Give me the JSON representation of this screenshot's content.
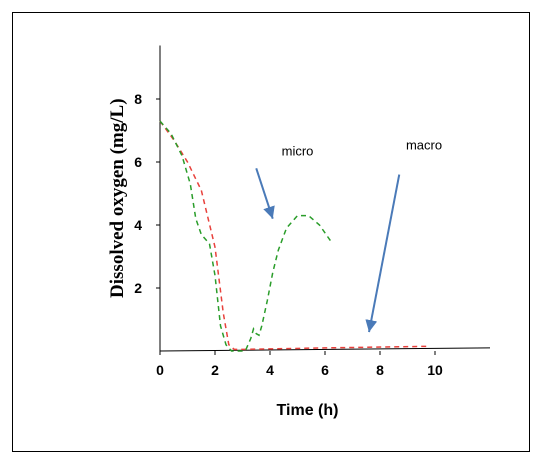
{
  "chart_data": {
    "type": "line",
    "xlabel": "Time  (h)",
    "ylabel": "Dissolved oxygen  (mg/L)",
    "xlim": [
      0,
      12
    ],
    "ylim": [
      0,
      10
    ],
    "x_ticks": [
      0,
      2,
      4,
      6,
      8,
      10
    ],
    "y_ticks": [
      2,
      4,
      6,
      8
    ],
    "grid": false,
    "series": [
      {
        "color": "#e8413c",
        "dash": "dashed",
        "points": [
          [
            0,
            7.3
          ],
          [
            0.5,
            6.7
          ],
          [
            1.0,
            6.0
          ],
          [
            1.5,
            5.1
          ],
          [
            2.0,
            3.3
          ],
          [
            2.3,
            1.2
          ],
          [
            2.5,
            0.2
          ],
          [
            2.7,
            0.05
          ],
          [
            3.0,
            0.05
          ],
          [
            6.0,
            0.1
          ],
          [
            9.8,
            0.15
          ]
        ]
      },
      {
        "color": "#2a9d2a",
        "dash": "dashed",
        "points": [
          [
            0,
            7.3
          ],
          [
            0.4,
            6.9
          ],
          [
            0.8,
            6.2
          ],
          [
            1.1,
            5.3
          ],
          [
            1.3,
            4.2
          ],
          [
            1.5,
            3.7
          ],
          [
            1.8,
            3.4
          ],
          [
            2.0,
            2.4
          ],
          [
            2.2,
            0.8
          ],
          [
            2.4,
            0.2
          ],
          [
            2.6,
            0.0
          ],
          [
            3.1,
            0.0
          ],
          [
            3.3,
            0.4
          ],
          [
            3.4,
            0.7
          ],
          [
            3.5,
            0.55
          ],
          [
            3.6,
            0.5
          ],
          [
            3.7,
            0.8
          ],
          [
            3.9,
            1.6
          ],
          [
            4.1,
            2.5
          ],
          [
            4.3,
            3.2
          ],
          [
            4.6,
            3.9
          ],
          [
            5.0,
            4.3
          ],
          [
            5.4,
            4.3
          ],
          [
            5.8,
            4.0
          ],
          [
            6.2,
            3.5
          ]
        ]
      }
    ],
    "annotations": [
      {
        "text": "micro",
        "x": 5.0,
        "y": 6.2,
        "arrow_from": [
          3.5,
          5.8
        ],
        "arrow_to": [
          4.1,
          4.2
        ]
      },
      {
        "text": "macro",
        "x": 9.6,
        "y": 6.4,
        "arrow_from": [
          8.7,
          5.6
        ],
        "arrow_to": [
          7.6,
          0.6
        ]
      }
    ],
    "arrow_color": "#4a7ab8"
  }
}
